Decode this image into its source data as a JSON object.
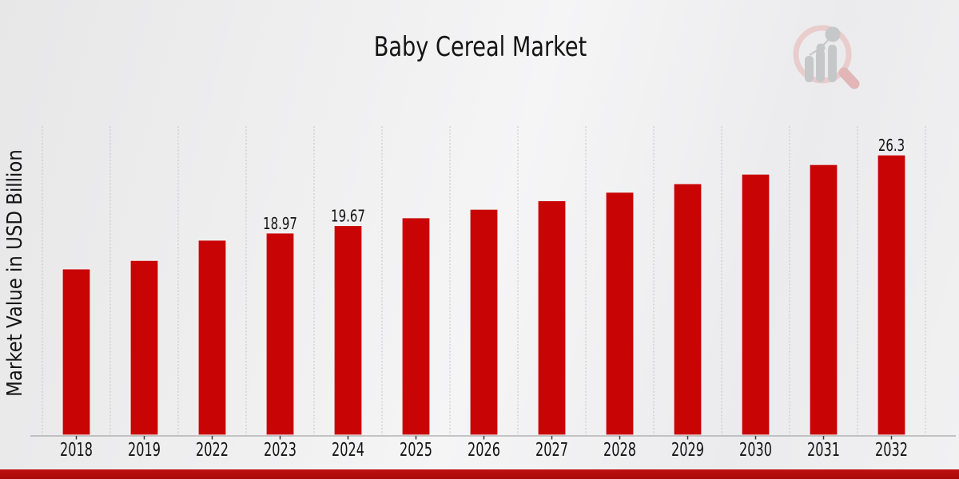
{
  "chart_data": {
    "type": "bar",
    "title": "Baby Cereal Market",
    "ylabel": "Market Value in USD Billion",
    "xlabel": "",
    "categories": [
      "2018",
      "2019",
      "2022",
      "2023",
      "2024",
      "2025",
      "2026",
      "2027",
      "2028",
      "2029",
      "2030",
      "2031",
      "2032"
    ],
    "values": [
      15.6,
      16.4,
      18.3,
      18.97,
      19.67,
      20.4,
      21.2,
      22.0,
      22.8,
      23.6,
      24.5,
      25.4,
      26.3
    ],
    "labeled_points": [
      {
        "category": "2023",
        "label": "18.97"
      },
      {
        "category": "2024",
        "label": "19.67"
      },
      {
        "category": "2032",
        "label": "26.3"
      }
    ],
    "ylim": [
      0,
      29
    ],
    "grid": "vertical-dashed",
    "legend": "none",
    "colors": {
      "bar": "#c90404",
      "bar_edge": "#f2f2f3",
      "grid": "#c3c3c5",
      "axis": "#a6a6a8",
      "tick": "#3a3a3a",
      "text": "#141414"
    }
  },
  "footer": {
    "accent_top": "#bf1111",
    "accent_bottom": "#a80909"
  },
  "watermark": {
    "icon": "magnifier-bar-chart-logo",
    "ring": "#e9cccc",
    "handle": "#e2b6b6",
    "gray": "#c6c7c9"
  }
}
